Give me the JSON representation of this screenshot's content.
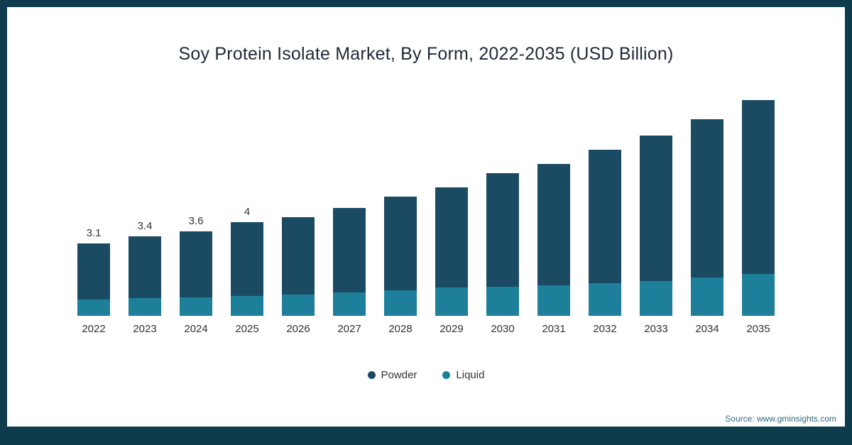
{
  "title": "Soy Protein Isolate Market, By Form, 2022-2035 (USD Billion)",
  "source": "Source: www.gminsights.com",
  "colors": {
    "frame": "#0e3c4d",
    "powder": "#1b4a63",
    "liquid": "#1e7f9b"
  },
  "legend": [
    {
      "label": "Powder",
      "color": "#1b4a63"
    },
    {
      "label": "Liquid",
      "color": "#1e7f9b"
    }
  ],
  "chart_data": {
    "type": "bar",
    "stacked": true,
    "title": "Soy Protein Isolate Market, By Form, 2022-2035 (USD Billion)",
    "xlabel": "",
    "ylabel": "USD Billion",
    "grid": false,
    "legend_position": "bottom",
    "categories": [
      "2022",
      "2023",
      "2024",
      "2025",
      "2026",
      "2027",
      "2028",
      "2029",
      "2030",
      "2031",
      "2032",
      "2033",
      "2034",
      "2035"
    ],
    "series": [
      {
        "name": "Powder",
        "color": "#1b4a63",
        "values": [
          2.4,
          2.65,
          2.8,
          3.15,
          3.3,
          3.6,
          4.0,
          4.3,
          4.85,
          5.2,
          5.7,
          6.2,
          6.75,
          7.4
        ]
      },
      {
        "name": "Liquid",
        "color": "#1e7f9b",
        "values": [
          0.7,
          0.75,
          0.8,
          0.85,
          0.9,
          1.0,
          1.1,
          1.2,
          1.25,
          1.3,
          1.4,
          1.5,
          1.65,
          1.8
        ]
      }
    ],
    "totals": [
      3.1,
      3.4,
      3.6,
      4.0,
      4.2,
      4.6,
      5.1,
      5.5,
      6.1,
      6.5,
      7.1,
      7.7,
      8.4,
      9.2
    ],
    "value_labels": [
      "3.1",
      "3.4",
      "3.6",
      "4",
      "",
      "",
      "",
      "",
      "",
      "",
      "",
      "",
      "",
      ""
    ],
    "ylim": [
      0,
      9.5
    ]
  }
}
